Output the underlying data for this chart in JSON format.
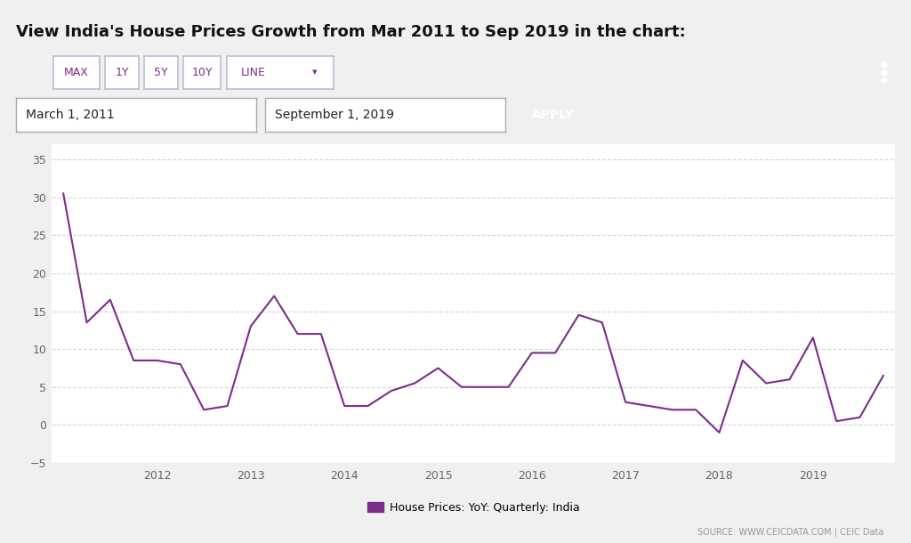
{
  "title": "View India's House Prices Growth from Mar 2011 to Sep 2019 in the chart:",
  "title_fontsize": 13,
  "background_color": "#f0f0f0",
  "chart_bg_color": "#ffffff",
  "line_color": "#7b2d8b",
  "line_width": 1.5,
  "legend_label": "House Prices: YoY: Quarterly: India",
  "source_text": "SOURCE: WWW.CEICDATA.COM | CEIC Data",
  "ylim": [
    -5,
    37
  ],
  "yticks": [
    -5,
    0,
    5,
    10,
    15,
    20,
    25,
    30,
    35
  ],
  "values": [
    30.5,
    13.5,
    16.5,
    8.5,
    8.5,
    8.0,
    2.0,
    2.5,
    13.0,
    17.0,
    12.0,
    12.0,
    2.5,
    2.5,
    4.5,
    5.5,
    7.5,
    5.0,
    5.0,
    5.0,
    9.5,
    9.5,
    14.5,
    13.5,
    3.0,
    2.5,
    2.0,
    2.0,
    -1.0,
    8.5,
    5.5,
    6.0,
    11.5,
    0.5,
    1.0,
    6.5
  ],
  "xtick_years": [
    "2012",
    "2013",
    "2014",
    "2015",
    "2016",
    "2017",
    "2018",
    "2019"
  ],
  "xtick_positions": [
    4,
    8,
    12,
    16,
    20,
    24,
    28,
    32
  ],
  "purple_dark": "#4e2a6e",
  "btn_border": "#c8b8d8",
  "btn_text": "#7b2d8b",
  "apply_bg": "#4e2a6e",
  "grid_color": "#cccccc",
  "grid_style": "--",
  "grid_alpha": 0.8,
  "date1_text": "March 1, 2011",
  "date2_text": "September 1, 2019",
  "apply_text": "APPLY"
}
